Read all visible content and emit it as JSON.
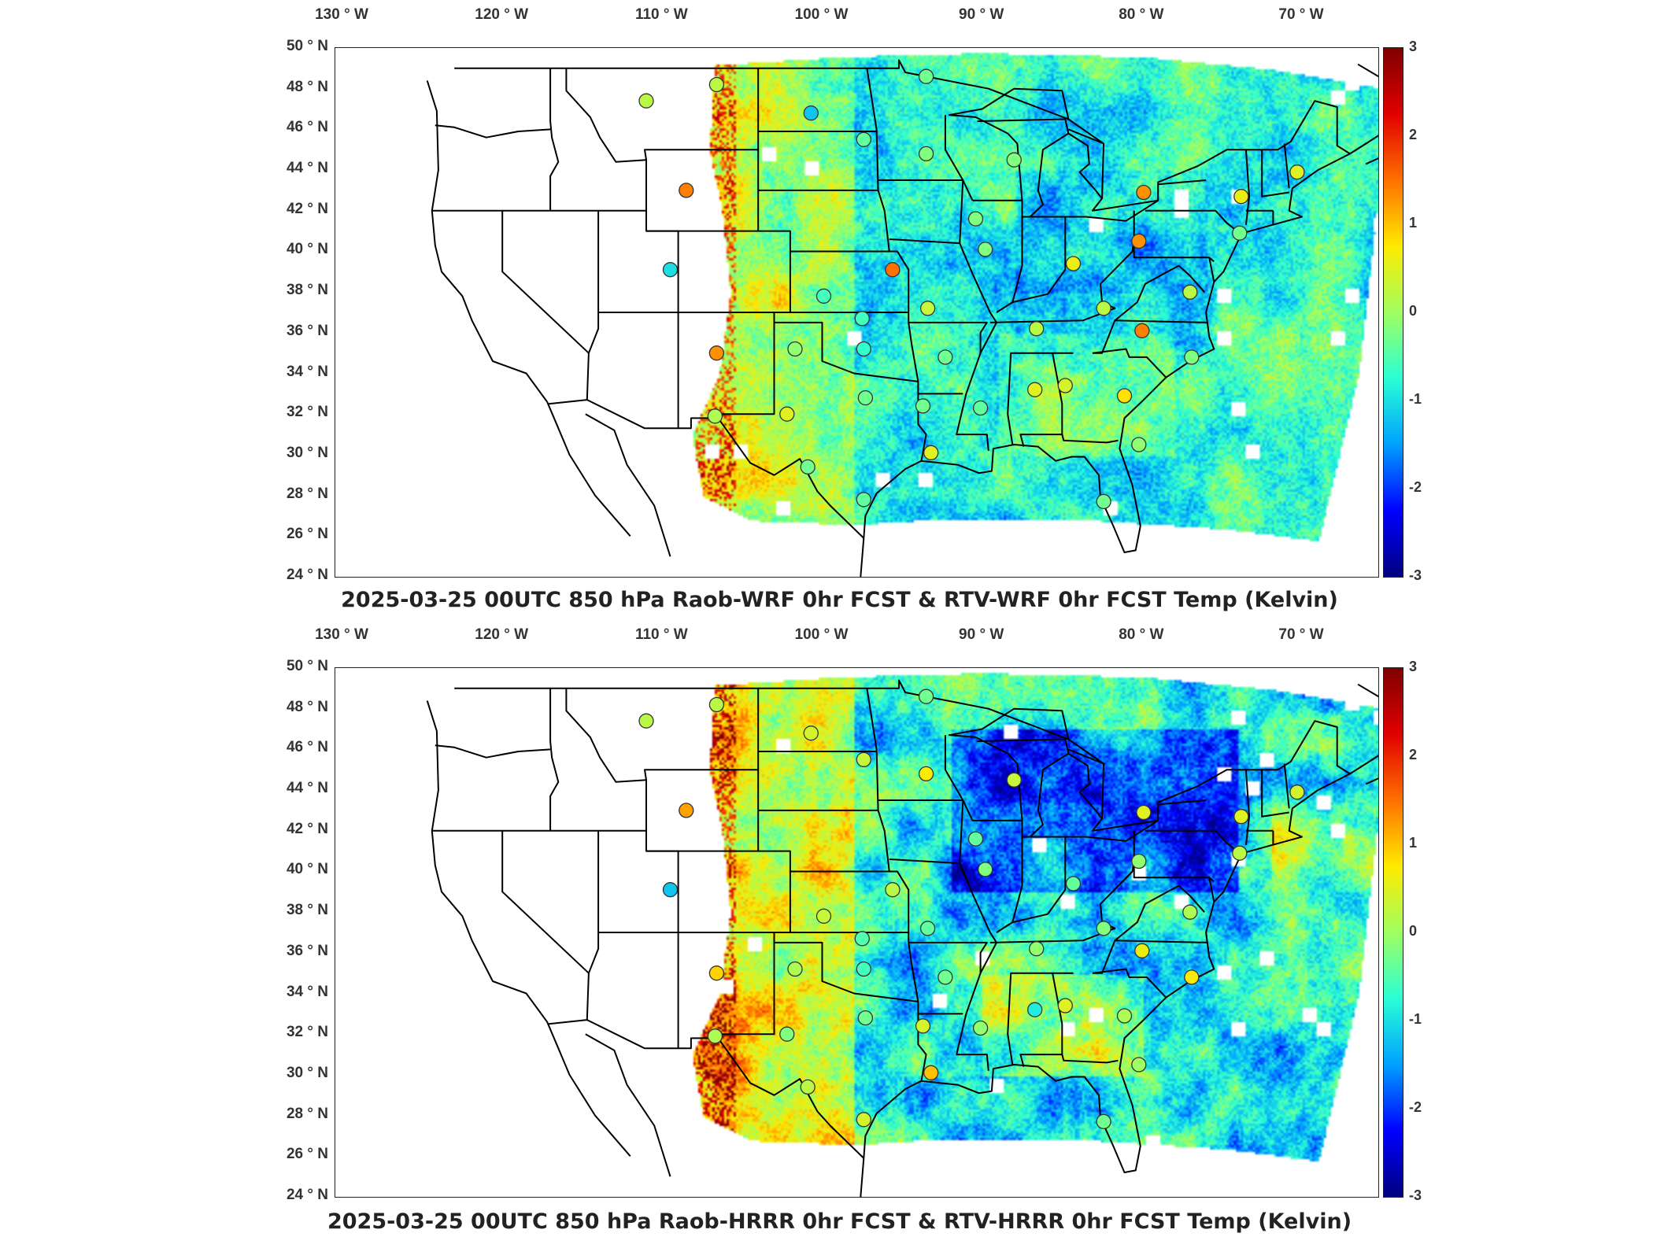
{
  "panels": [
    {
      "title": "2025-03-25 00UTC 850 hPa Raob-WRF 0hr FCST & RTV-WRF 0hr FCST Temp (Kelvin)",
      "field_bias": "cool",
      "stations": [
        {
          "lon": -111.0,
          "lat": 47.4,
          "v": 0.2
        },
        {
          "lon": -106.6,
          "lat": 48.2,
          "v": 0.2
        },
        {
          "lon": -100.7,
          "lat": 46.8,
          "v": -1.2
        },
        {
          "lon": -97.4,
          "lat": 45.5,
          "v": -0.4
        },
        {
          "lon": -93.5,
          "lat": 44.8,
          "v": -0.2
        },
        {
          "lon": -93.5,
          "lat": 48.6,
          "v": -0.3
        },
        {
          "lon": -108.5,
          "lat": 43.0,
          "v": 1.4
        },
        {
          "lon": -109.5,
          "lat": 39.1,
          "v": -1.0
        },
        {
          "lon": -106.6,
          "lat": 35.0,
          "v": 1.3
        },
        {
          "lon": -95.6,
          "lat": 39.1,
          "v": 1.5
        },
        {
          "lon": -99.9,
          "lat": 37.8,
          "v": -0.6
        },
        {
          "lon": -97.5,
          "lat": 36.7,
          "v": -0.6
        },
        {
          "lon": -97.4,
          "lat": 35.2,
          "v": -0.7
        },
        {
          "lon": -101.7,
          "lat": 35.2,
          "v": -0.1
        },
        {
          "lon": -93.4,
          "lat": 37.2,
          "v": 0.3
        },
        {
          "lon": -92.3,
          "lat": 34.8,
          "v": -0.3
        },
        {
          "lon": -97.3,
          "lat": 32.8,
          "v": -0.3
        },
        {
          "lon": -102.2,
          "lat": 32.0,
          "v": 0.5
        },
        {
          "lon": -106.7,
          "lat": 31.9,
          "v": 0.1
        },
        {
          "lon": -100.9,
          "lat": 29.4,
          "v": -0.3
        },
        {
          "lon": -97.4,
          "lat": 27.8,
          "v": -0.4
        },
        {
          "lon": -93.2,
          "lat": 30.1,
          "v": 0.5
        },
        {
          "lon": -93.7,
          "lat": 32.4,
          "v": -0.3
        },
        {
          "lon": -90.1,
          "lat": 32.3,
          "v": -0.4
        },
        {
          "lon": -86.7,
          "lat": 33.2,
          "v": 0.5
        },
        {
          "lon": -84.8,
          "lat": 33.4,
          "v": 0.4
        },
        {
          "lon": -86.6,
          "lat": 36.2,
          "v": 0.2
        },
        {
          "lon": -89.8,
          "lat": 40.1,
          "v": -0.2
        },
        {
          "lon": -90.4,
          "lat": 41.6,
          "v": -0.2
        },
        {
          "lon": -88.0,
          "lat": 44.5,
          "v": -0.2
        },
        {
          "lon": -84.3,
          "lat": 39.4,
          "v": 0.6
        },
        {
          "lon": -80.2,
          "lat": 40.5,
          "v": 1.3
        },
        {
          "lon": -79.9,
          "lat": 42.9,
          "v": 1.3
        },
        {
          "lon": -73.8,
          "lat": 42.7,
          "v": 0.6
        },
        {
          "lon": -70.3,
          "lat": 43.9,
          "v": 0.5
        },
        {
          "lon": -80.0,
          "lat": 36.1,
          "v": 1.4
        },
        {
          "lon": -81.1,
          "lat": 32.9,
          "v": 0.8
        },
        {
          "lon": -82.4,
          "lat": 37.2,
          "v": 0.2
        },
        {
          "lon": -77.0,
          "lat": 38.0,
          "v": 0.2
        },
        {
          "lon": -76.9,
          "lat": 34.8,
          "v": -0.2
        },
        {
          "lon": -73.9,
          "lat": 40.9,
          "v": -0.3
        },
        {
          "lon": -82.4,
          "lat": 27.7,
          "v": -0.3
        },
        {
          "lon": -80.2,
          "lat": 30.5,
          "v": -0.1
        }
      ]
    },
    {
      "title": "2025-03-25 00UTC 850 hPa Raob-HRRR 0hr FCST & RTV-HRRR 0hr FCST Temp (Kelvin)",
      "field_bias": "mixed",
      "stations": [
        {
          "lon": -111.0,
          "lat": 47.4,
          "v": 0.2
        },
        {
          "lon": -106.6,
          "lat": 48.2,
          "v": 0.2
        },
        {
          "lon": -100.7,
          "lat": 46.8,
          "v": 0.4
        },
        {
          "lon": -97.4,
          "lat": 45.5,
          "v": 0.3
        },
        {
          "lon": -93.5,
          "lat": 44.8,
          "v": 0.7
        },
        {
          "lon": -93.5,
          "lat": 48.6,
          "v": -0.3
        },
        {
          "lon": -108.5,
          "lat": 43.0,
          "v": 1.2
        },
        {
          "lon": -109.5,
          "lat": 39.1,
          "v": -1.2
        },
        {
          "lon": -106.6,
          "lat": 35.0,
          "v": 0.9
        },
        {
          "lon": -95.6,
          "lat": 39.1,
          "v": 0.2
        },
        {
          "lon": -99.9,
          "lat": 37.8,
          "v": 0.3
        },
        {
          "lon": -97.5,
          "lat": 36.7,
          "v": -0.5
        },
        {
          "lon": -97.4,
          "lat": 35.2,
          "v": -0.6
        },
        {
          "lon": -101.7,
          "lat": 35.2,
          "v": 0.1
        },
        {
          "lon": -93.4,
          "lat": 37.2,
          "v": -0.4
        },
        {
          "lon": -92.3,
          "lat": 34.8,
          "v": -0.3
        },
        {
          "lon": -97.3,
          "lat": 32.8,
          "v": -0.3
        },
        {
          "lon": -102.2,
          "lat": 32.0,
          "v": -0.2
        },
        {
          "lon": -106.7,
          "lat": 31.9,
          "v": 0.1
        },
        {
          "lon": -100.9,
          "lat": 29.4,
          "v": 0.2
        },
        {
          "lon": -97.4,
          "lat": 27.8,
          "v": 0.4
        },
        {
          "lon": -93.2,
          "lat": 30.1,
          "v": 1.0
        },
        {
          "lon": -93.7,
          "lat": 32.4,
          "v": 0.4
        },
        {
          "lon": -90.1,
          "lat": 32.3,
          "v": -0.1
        },
        {
          "lon": -86.7,
          "lat": 33.2,
          "v": -0.9
        },
        {
          "lon": -84.8,
          "lat": 33.4,
          "v": 0.5
        },
        {
          "lon": -86.6,
          "lat": 36.2,
          "v": -0.1
        },
        {
          "lon": -89.8,
          "lat": 40.1,
          "v": -0.2
        },
        {
          "lon": -90.4,
          "lat": 41.6,
          "v": -0.4
        },
        {
          "lon": -88.0,
          "lat": 44.5,
          "v": 0.3
        },
        {
          "lon": -84.3,
          "lat": 39.4,
          "v": -0.4
        },
        {
          "lon": -80.2,
          "lat": 40.5,
          "v": -0.1
        },
        {
          "lon": -79.9,
          "lat": 42.9,
          "v": 0.5
        },
        {
          "lon": -73.8,
          "lat": 42.7,
          "v": 0.5
        },
        {
          "lon": -70.3,
          "lat": 43.9,
          "v": 0.4
        },
        {
          "lon": -80.0,
          "lat": 36.1,
          "v": 0.6
        },
        {
          "lon": -81.1,
          "lat": 32.9,
          "v": 0.1
        },
        {
          "lon": -82.4,
          "lat": 37.2,
          "v": -0.2
        },
        {
          "lon": -77.0,
          "lat": 38.0,
          "v": 0.1
        },
        {
          "lon": -76.9,
          "lat": 34.8,
          "v": 0.7
        },
        {
          "lon": -73.9,
          "lat": 40.9,
          "v": 0.2
        },
        {
          "lon": -82.4,
          "lat": 27.7,
          "v": -0.3
        },
        {
          "lon": -80.2,
          "lat": 30.5,
          "v": 0.0
        }
      ]
    }
  ],
  "lon_labels": [
    "130",
    "120",
    "110",
    "100",
    "90",
    "80",
    "70"
  ],
  "lon_values": [
    -130,
    -120,
    -110,
    -100,
    -90,
    -80,
    -70
  ],
  "lon_suffix": "W",
  "lat_labels": [
    "50",
    "48",
    "46",
    "44",
    "42",
    "40",
    "38",
    "36",
    "34",
    "32",
    "30",
    "28",
    "26",
    "24"
  ],
  "lat_values": [
    50,
    48,
    46,
    44,
    42,
    40,
    38,
    36,
    34,
    32,
    30,
    28,
    26,
    24
  ],
  "lat_suffix": "N",
  "degree_symbol": "°",
  "colorbar": {
    "ticks": [
      "3",
      "2",
      "1",
      "0",
      "-1",
      "-2",
      "-3"
    ],
    "min": -3,
    "max": 3,
    "colormap": "jet",
    "stops": [
      "#00007f",
      "#0000ff",
      "#00a0ff",
      "#2affd5",
      "#a0ff60",
      "#ffea00",
      "#ff7000",
      "#e00000",
      "#7f0000"
    ]
  },
  "map_extent": {
    "lon_min": -132.0,
    "lon_max": -64.0,
    "lat_min": 24.0,
    "lat_max": 50.0
  },
  "colors": {
    "state_lines": "#000000",
    "frame": "#222222",
    "station_edge": "#333333",
    "missing_data": "#ffffff"
  }
}
